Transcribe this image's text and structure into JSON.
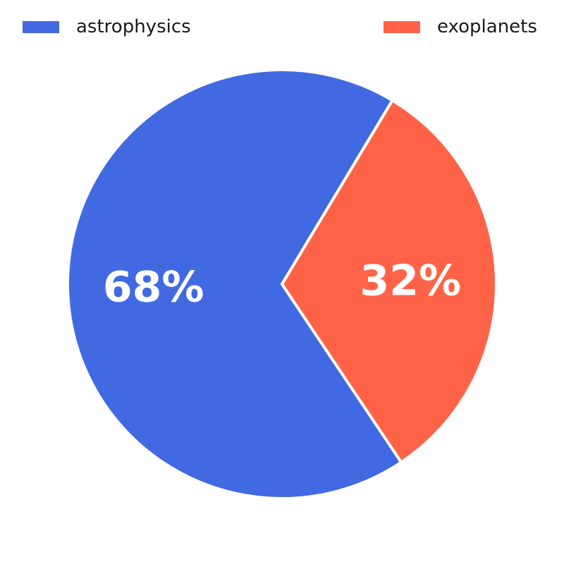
{
  "chart_data": {
    "type": "pie",
    "title": "",
    "slices": [
      {
        "label": "astrophysics",
        "value": 68,
        "display": "68%",
        "color": "#4169e1"
      },
      {
        "label": "exoplanets",
        "value": 32,
        "display": "32%",
        "color": "#ff6347"
      }
    ],
    "legend": {
      "placement": "top"
    },
    "start_angle_deg": 59,
    "direction": "counterclockwise"
  }
}
